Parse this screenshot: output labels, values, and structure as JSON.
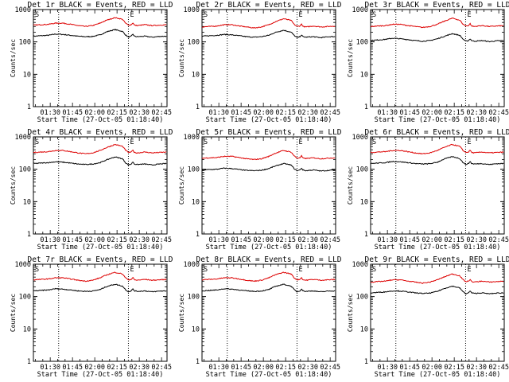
{
  "panel_titles": [
    "Det 1r BLACK = Events, RED = LLD",
    "Det 2r BLACK = Events, RED = LLD",
    "Det 3r BLACK = Events, RED = LLD",
    "Det 4r BLACK = Events, RED = LLD",
    "Det 5r BLACK = Events, RED = LLD",
    "Det 6r BLACK = Events, RED = LLD",
    "Det 7r BLACK = Events, RED = LLD",
    "Det 8r BLACK = Events, RED = LLD",
    "Det 9r BLACK = Events, RED = LLD"
  ],
  "ylabel": "Counts/sec",
  "xlabel": "Start Time (27-Oct-05 01:18:40)",
  "x_tick_labels": [
    "01:30",
    "01:45",
    "02:00",
    "02:15",
    "02:30",
    "02:45"
  ],
  "y_tick_labels": [
    "1",
    "10",
    "100",
    "1000"
  ],
  "marker_S": "S",
  "marker_E": "E",
  "colors": {
    "events": "#000000",
    "lld": "#dd0000",
    "axes": "#000000"
  },
  "chart_data": {
    "type": "line",
    "layout": "3x3 grid",
    "x_unit": "minutes since 01:18:40",
    "xlim": [
      0,
      90
    ],
    "ylim": [
      1,
      1000
    ],
    "y_scale": "log",
    "x_ticks": [
      11.33,
      26.33,
      41.33,
      56.33,
      71.33,
      86.33
    ],
    "vertical_dotted_lines_x": [
      17,
      64
    ],
    "grid": false,
    "panels": [
      {
        "name": "Det 1r",
        "x": [
          0,
          5,
          10,
          15,
          20,
          25,
          30,
          35,
          40,
          45,
          50,
          55,
          60,
          62,
          64,
          66,
          67,
          68,
          70,
          75,
          80,
          85,
          90
        ],
        "series": [
          {
            "name": "Events",
            "values": [
              150,
              155,
              160,
              175,
              170,
              160,
              150,
              145,
              148,
              165,
              210,
              240,
              210,
              165,
              140,
              150,
              175,
              150,
              145,
              150,
              140,
              148,
              150
            ]
          },
          {
            "name": "LLD",
            "values": [
              330,
              340,
              350,
              380,
              380,
              350,
              320,
              300,
              320,
              380,
              480,
              560,
              500,
              380,
              330,
              340,
              390,
              330,
              320,
              340,
              320,
              330,
              340
            ]
          }
        ]
      },
      {
        "name": "Det 2r",
        "x": [
          0,
          5,
          10,
          15,
          20,
          25,
          30,
          35,
          40,
          45,
          50,
          55,
          60,
          62,
          64,
          66,
          67,
          68,
          70,
          75,
          80,
          85,
          90
        ],
        "series": [
          {
            "name": "Events",
            "values": [
              150,
              155,
              160,
              170,
              165,
              155,
              145,
              140,
              145,
              160,
              200,
              230,
              200,
              160,
              135,
              145,
              165,
              145,
              140,
              145,
              135,
              145,
              145
            ]
          },
          {
            "name": "LLD",
            "values": [
              290,
              300,
              310,
              340,
              340,
              310,
              290,
              270,
              290,
              340,
              430,
              520,
              460,
              350,
              300,
              310,
              360,
              300,
              290,
              310,
              290,
              300,
              310
            ]
          }
        ]
      },
      {
        "name": "Det 3r",
        "x": [
          0,
          5,
          10,
          15,
          20,
          25,
          30,
          35,
          40,
          45,
          50,
          55,
          60,
          62,
          64,
          66,
          67,
          68,
          70,
          75,
          80,
          85,
          90
        ],
        "series": [
          {
            "name": "Events",
            "values": [
              110,
              115,
              120,
              130,
              125,
              118,
              110,
              105,
              110,
              125,
              150,
              180,
              160,
              125,
              105,
              110,
              125,
              110,
              105,
              110,
              102,
              108,
              110
            ]
          },
          {
            "name": "LLD",
            "values": [
              300,
              310,
              320,
              350,
              350,
              320,
              300,
              280,
              300,
              350,
              440,
              540,
              470,
              360,
              310,
              320,
              370,
              310,
              300,
              320,
              300,
              310,
              320
            ]
          }
        ]
      },
      {
        "name": "Det 4r",
        "x": [
          0,
          5,
          10,
          15,
          20,
          25,
          30,
          35,
          40,
          45,
          50,
          55,
          60,
          62,
          64,
          66,
          67,
          68,
          70,
          75,
          80,
          85,
          90
        ],
        "series": [
          {
            "name": "Events",
            "values": [
              150,
              155,
              160,
              170,
              165,
              155,
              145,
              140,
              145,
              160,
              200,
              240,
              210,
              160,
              135,
              145,
              170,
              145,
              140,
              145,
              135,
              145,
              150
            ]
          },
          {
            "name": "LLD",
            "values": [
              330,
              340,
              350,
              380,
              380,
              350,
              320,
              300,
              320,
              380,
              480,
              580,
              510,
              390,
              330,
              340,
              390,
              330,
              320,
              340,
              320,
              330,
              340
            ]
          }
        ]
      },
      {
        "name": "Det 5r",
        "x": [
          0,
          5,
          10,
          15,
          20,
          25,
          30,
          35,
          40,
          45,
          50,
          55,
          60,
          62,
          64,
          66,
          67,
          68,
          70,
          75,
          80,
          85,
          90
        ],
        "series": [
          {
            "name": "Events",
            "values": [
              95,
              98,
              100,
              108,
              105,
              98,
              92,
              90,
              93,
              105,
              128,
              150,
              135,
              105,
              90,
              95,
              108,
              95,
              90,
              95,
              88,
              92,
              95
            ]
          },
          {
            "name": "LLD",
            "values": [
              220,
              225,
              230,
              250,
              250,
              230,
              210,
              200,
              210,
              250,
              320,
              380,
              340,
              260,
              220,
              225,
              260,
              220,
              215,
              225,
              210,
              220,
              225
            ]
          }
        ]
      },
      {
        "name": "Det 6r",
        "x": [
          0,
          5,
          10,
          15,
          20,
          25,
          30,
          35,
          40,
          45,
          50,
          55,
          60,
          62,
          64,
          66,
          67,
          68,
          70,
          75,
          80,
          85,
          90
        ],
        "series": [
          {
            "name": "Events",
            "values": [
              150,
              155,
              160,
              175,
              170,
              160,
              150,
              145,
              148,
              165,
              210,
              245,
              215,
              165,
              140,
              150,
              175,
              150,
              145,
              150,
              140,
              148,
              150
            ]
          },
          {
            "name": "LLD",
            "values": [
              330,
              340,
              350,
              380,
              380,
              350,
              320,
              300,
              320,
              380,
              480,
              580,
              510,
              390,
              330,
              340,
              390,
              330,
              320,
              340,
              320,
              330,
              340
            ]
          }
        ]
      },
      {
        "name": "Det 7r",
        "x": [
          0,
          5,
          10,
          15,
          20,
          25,
          30,
          35,
          40,
          45,
          50,
          55,
          60,
          62,
          64,
          66,
          67,
          68,
          70,
          75,
          80,
          85,
          90
        ],
        "series": [
          {
            "name": "Events",
            "values": [
              150,
              155,
              160,
              175,
              170,
              160,
              150,
              145,
              148,
              165,
              210,
              240,
              210,
              165,
              140,
              150,
              175,
              150,
              145,
              150,
              140,
              148,
              150
            ]
          },
          {
            "name": "LLD",
            "values": [
              330,
              340,
              350,
              380,
              380,
              350,
              320,
              300,
              320,
              380,
              480,
              560,
              500,
              380,
              330,
              340,
              390,
              330,
              320,
              340,
              320,
              330,
              340
            ]
          }
        ]
      },
      {
        "name": "Det 8r",
        "x": [
          0,
          5,
          10,
          15,
          20,
          25,
          30,
          35,
          40,
          45,
          50,
          55,
          60,
          62,
          64,
          66,
          67,
          68,
          70,
          75,
          80,
          85,
          90
        ],
        "series": [
          {
            "name": "Events",
            "values": [
              150,
              155,
              160,
              175,
              170,
              160,
              150,
              145,
              148,
              165,
              210,
              240,
              210,
              165,
              140,
              150,
              175,
              150,
              145,
              150,
              140,
              148,
              150
            ]
          },
          {
            "name": "LLD",
            "values": [
              330,
              340,
              350,
              380,
              380,
              350,
              320,
              300,
              320,
              380,
              480,
              560,
              500,
              380,
              330,
              340,
              390,
              330,
              320,
              340,
              320,
              330,
              340
            ]
          }
        ]
      },
      {
        "name": "Det 9r",
        "x": [
          0,
          5,
          10,
          15,
          20,
          25,
          30,
          35,
          40,
          45,
          50,
          55,
          60,
          62,
          64,
          66,
          67,
          68,
          70,
          75,
          80,
          85,
          90
        ],
        "series": [
          {
            "name": "Events",
            "values": [
              130,
              135,
              140,
              150,
              148,
              140,
              130,
              125,
              128,
              145,
              180,
              210,
              185,
              145,
              122,
              130,
              150,
              130,
              125,
              130,
              122,
              128,
              130
            ]
          },
          {
            "name": "LLD",
            "values": [
              280,
              290,
              300,
              330,
              330,
              300,
              280,
              260,
              280,
              330,
              410,
              500,
              440,
              340,
              290,
              300,
              340,
              290,
              280,
              300,
              280,
              290,
              300
            ]
          }
        ]
      }
    ]
  }
}
